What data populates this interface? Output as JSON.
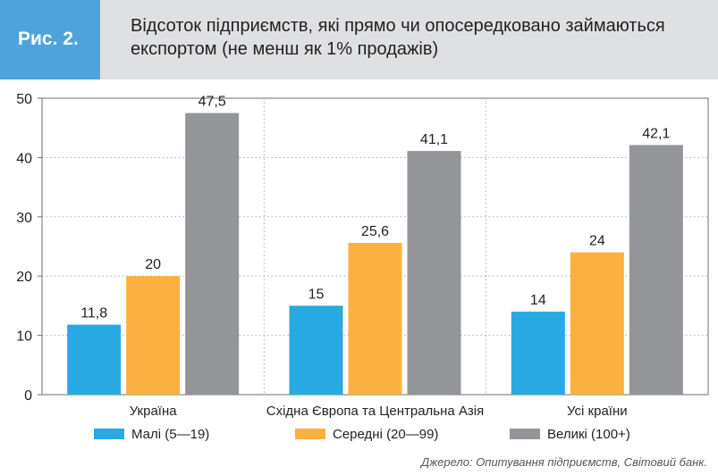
{
  "figure": {
    "label": "Рис. 2.",
    "title": "Відсоток підприємств, які прямо чи опосередковано займаються експортом (не менш як 1% продажів)"
  },
  "source": "Джерело: Опитування підприємств, Світовий банк.",
  "chart_data": {
    "type": "bar",
    "title": "Відсоток підприємств, які прямо чи опосередковано займаються експортом (не менш як 1% продажів)",
    "categories": [
      "Україна",
      "Східна Європа та Центральна Азія",
      "Усі країни"
    ],
    "series": [
      {
        "name": "Малі (5—19)",
        "values": [
          11.8,
          15,
          14
        ],
        "labels": [
          "11,8",
          "15",
          "14"
        ],
        "color": "#29a9e1"
      },
      {
        "name": "Середні (20—99)",
        "values": [
          20,
          25.6,
          24
        ],
        "labels": [
          "20",
          "25,6",
          "24"
        ],
        "color": "#fbb040"
      },
      {
        "name": "Великі (100+)",
        "values": [
          47.5,
          41.1,
          42.1
        ],
        "labels": [
          "47,5",
          "41,1",
          "42,1"
        ],
        "color": "#939598"
      }
    ],
    "yticks": [
      "0",
      "10",
      "20",
      "30",
      "40",
      "50"
    ],
    "ylim": [
      0,
      50
    ],
    "grid": true,
    "legend_position": "bottom"
  }
}
